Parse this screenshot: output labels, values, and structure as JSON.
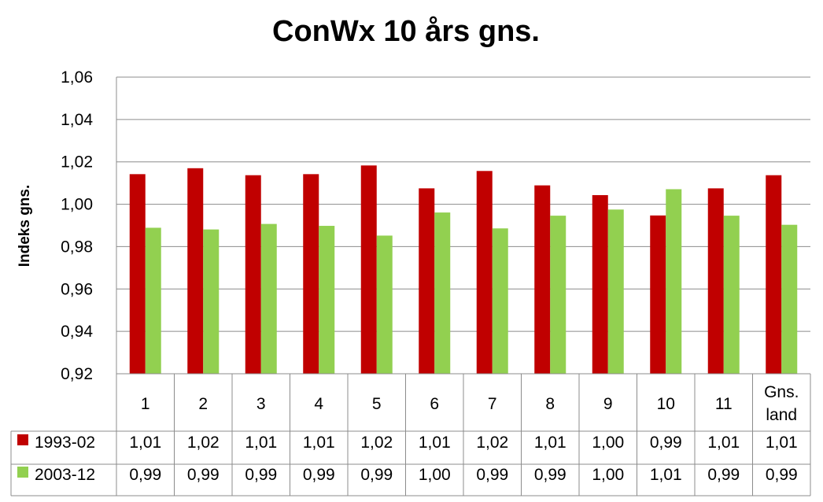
{
  "chart_data": {
    "type": "bar",
    "title": "ConWx 10 års gns.",
    "ylabel": "Indeks gns.",
    "xlabel": "",
    "ylim": [
      0.92,
      1.06
    ],
    "y_ticks": [
      "1,06",
      "1,04",
      "1,02",
      "1,00",
      "0,98",
      "0,96",
      "0,94",
      "0,92"
    ],
    "y_tick_values": [
      1.06,
      1.04,
      1.02,
      1.0,
      0.98,
      0.96,
      0.94,
      0.92
    ],
    "grid": true,
    "legend": "data-table",
    "categories": [
      "1",
      "2",
      "3",
      "4",
      "5",
      "6",
      "7",
      "8",
      "9",
      "10",
      "11",
      "Gns.\nland"
    ],
    "series": [
      {
        "name": "1993-02",
        "color": "#C00000",
        "values": [
          1.0142,
          1.017,
          1.0137,
          1.0142,
          1.0183,
          1.0075,
          1.0157,
          1.0089,
          1.0043,
          0.9947,
          1.0075,
          1.0137
        ],
        "labels": [
          "1,01",
          "1,02",
          "1,01",
          "1,01",
          "1,02",
          "1,01",
          "1,02",
          "1,01",
          "1,00",
          "0,99",
          "1,01",
          "1,01"
        ]
      },
      {
        "name": "2003-12",
        "color": "#92D050",
        "values": [
          0.9889,
          0.9881,
          0.9907,
          0.9898,
          0.9852,
          0.9961,
          0.9886,
          0.9946,
          0.9975,
          1.0071,
          0.9946,
          0.9903
        ],
        "labels": [
          "0,99",
          "0,99",
          "0,99",
          "0,99",
          "0,99",
          "1,00",
          "0,99",
          "0,99",
          "1,00",
          "1,01",
          "0,99",
          "0,99"
        ]
      }
    ]
  }
}
